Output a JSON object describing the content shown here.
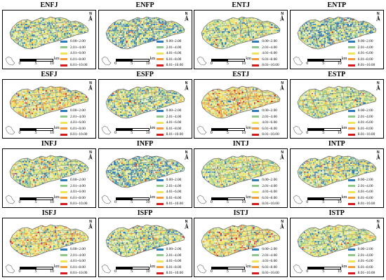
{
  "panels": [
    {
      "title": "ENFJ",
      "tone": "mixed"
    },
    {
      "title": "ENFP",
      "tone": "blue"
    },
    {
      "title": "ENTJ",
      "tone": "green"
    },
    {
      "title": "ENTP",
      "tone": "blue"
    },
    {
      "title": "ESFJ",
      "tone": "warm"
    },
    {
      "title": "ESFP",
      "tone": "mixed"
    },
    {
      "title": "ESTJ",
      "tone": "hot"
    },
    {
      "title": "ESTP",
      "tone": "green"
    },
    {
      "title": "INFJ",
      "tone": "mixed"
    },
    {
      "title": "INFP",
      "tone": "blue"
    },
    {
      "title": "INTJ",
      "tone": "green"
    },
    {
      "title": "INTP",
      "tone": "mixed"
    },
    {
      "title": "ISFJ",
      "tone": "warm"
    },
    {
      "title": "ISFP",
      "tone": "mixed"
    },
    {
      "title": "ISTJ",
      "tone": "warm"
    },
    {
      "title": "ISTP",
      "tone": "green"
    }
  ],
  "legend": [
    {
      "label": "0.00~2.00",
      "color": "#2b7bba"
    },
    {
      "label": "2.01~4.00",
      "color": "#8fc98a"
    },
    {
      "label": "4.01~6.00",
      "color": "#f0e45a"
    },
    {
      "label": "6.01~8.00",
      "color": "#f39a3c"
    },
    {
      "label": "8.01~10.00",
      "color": "#d7191c"
    }
  ],
  "scalebar": {
    "ticks": [
      "0",
      "5",
      "10"
    ],
    "unit": "km"
  },
  "north_label": "N",
  "map_colors": {
    "outline": "#6b6b6b",
    "road": "#808080",
    "background": "#ffffff"
  },
  "icons": {
    "north_arrow": "north-arrow-icon"
  }
}
